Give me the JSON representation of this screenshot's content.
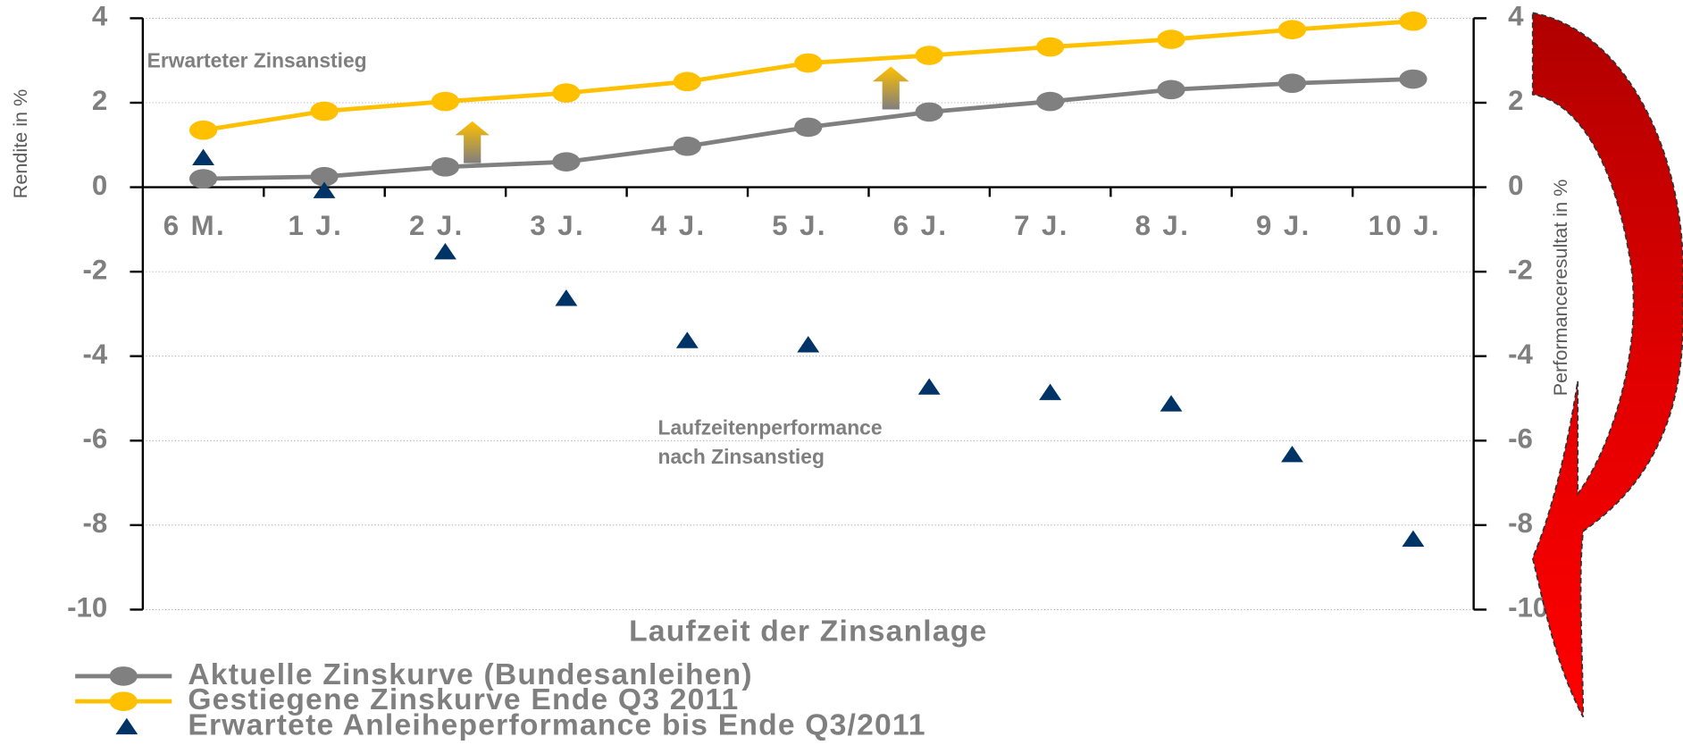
{
  "chart_data": {
    "type": "line",
    "categories": [
      "6 M.",
      "1 J.",
      "2 J.",
      "3 J.",
      "4 J.",
      "5 J.",
      "6 J.",
      "7 J.",
      "8 J.",
      "9 J.",
      "10 J."
    ],
    "xlabel": "Laufzeit der Zinsanlage",
    "ylabel": "Rendite in %",
    "y2label": "Performanceresultat in %",
    "annotations": [
      "Erwarteter Zinsanstieg",
      "Laufzeitenperformance",
      "nach Zinsanstieg"
    ],
    "ylim": [
      -10,
      4
    ],
    "yticks": [
      -10,
      -8,
      -6,
      -4,
      -2,
      0,
      2,
      4
    ],
    "y2lim": [
      -10,
      4
    ],
    "y2ticks": [
      -10,
      -8,
      -6,
      -4,
      -2,
      0,
      2,
      4
    ],
    "grid": true,
    "series": [
      {
        "name": "Aktuelle Zinskurve (Bundesanleihen)",
        "color": "#808080",
        "marker": "circle",
        "values": [
          0.2,
          0.25,
          0.48,
          0.6,
          0.97,
          1.42,
          1.78,
          2.03,
          2.31,
          2.46,
          2.56
        ]
      },
      {
        "name": "Gestiegene Zinskurve Ende Q3 2011",
        "color": "#ffc000",
        "marker": "circle",
        "values": [
          1.35,
          1.8,
          2.03,
          2.23,
          2.5,
          2.94,
          3.12,
          3.32,
          3.5,
          3.73,
          3.93
        ]
      },
      {
        "name": "Erwartete Anleiheperformance bis Ende Q3/2011",
        "color": "#003366",
        "marker": "triangle",
        "axis": "y2",
        "values": [
          0.68,
          -0.1,
          -1.55,
          -2.65,
          -3.65,
          -3.75,
          -4.75,
          -4.88,
          -5.15,
          -6.35,
          -8.35
        ]
      }
    ]
  }
}
